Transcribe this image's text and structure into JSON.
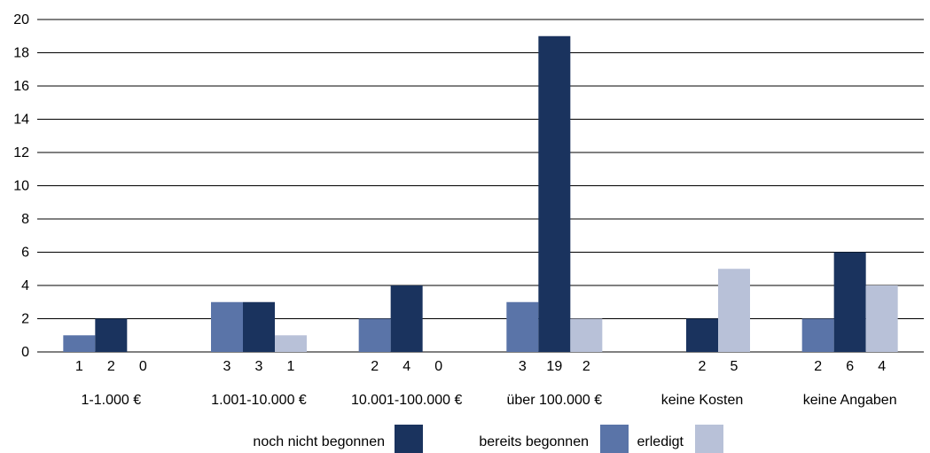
{
  "chart_data": {
    "type": "bar",
    "categories": [
      "1-1.000 €",
      "1.001-10.000 €",
      "10.001-100.000 €",
      "über 100.000 €",
      "keine Kosten",
      "keine Angaben"
    ],
    "series": [
      {
        "name": "bereits begonnen",
        "values": [
          1,
          3,
          2,
          3,
          null,
          2
        ],
        "color": "#5a74a8"
      },
      {
        "name": "noch nicht begonnen",
        "values": [
          2,
          3,
          4,
          19,
          2,
          6
        ],
        "color": "#1a335e"
      },
      {
        "name": "erledigt",
        "values": [
          0,
          1,
          0,
          2,
          5,
          4
        ],
        "color": "#b8c1d8"
      }
    ],
    "data_labels": [
      [
        "1",
        "2",
        "0"
      ],
      [
        "3",
        "3",
        "1"
      ],
      [
        "2",
        "4",
        "0"
      ],
      [
        "3",
        "19",
        "2"
      ],
      [
        "",
        "2",
        "5"
      ],
      [
        "2",
        "6",
        "4"
      ]
    ],
    "legend_order": [
      "noch nicht begonnen",
      "bereits begonnen",
      "erledigt"
    ],
    "yticks": [
      "0",
      "2",
      "4",
      "6",
      "8",
      "10",
      "12",
      "14",
      "16",
      "18",
      "20"
    ],
    "ylim": [
      0,
      20
    ],
    "grid": true,
    "legend_position": "bottom"
  }
}
